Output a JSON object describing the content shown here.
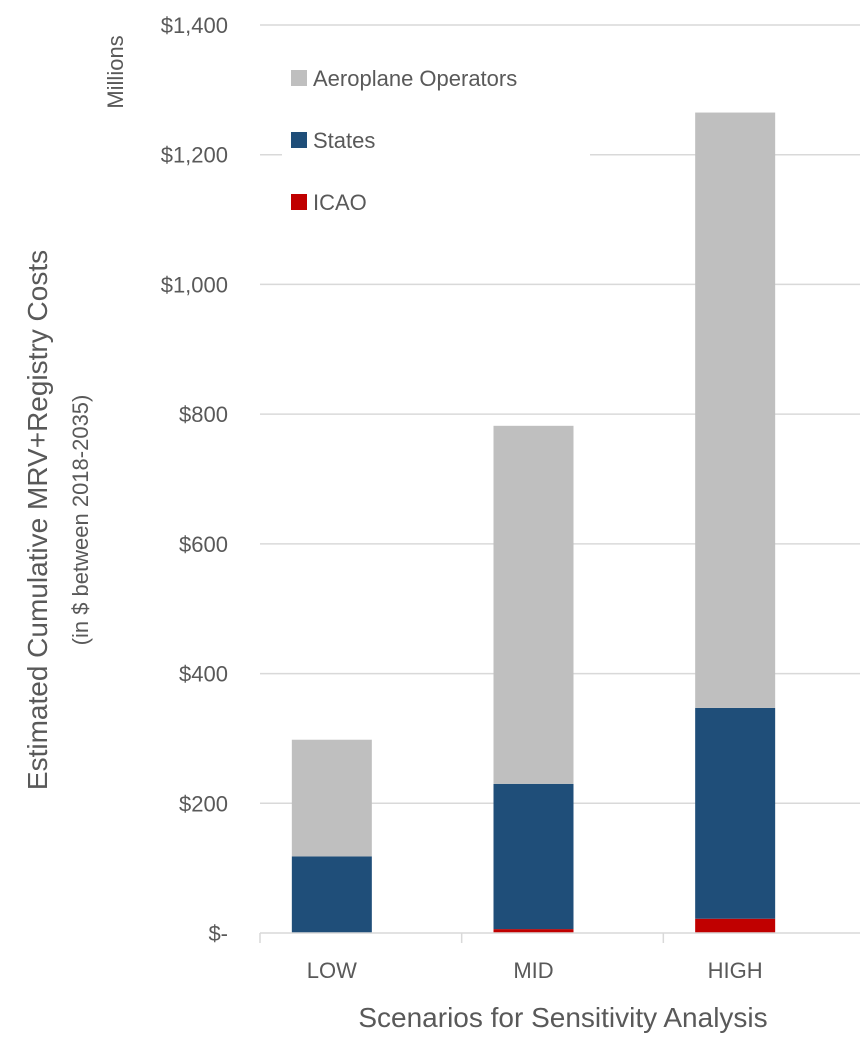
{
  "chart_data": {
    "type": "bar",
    "stacked": true,
    "categories": [
      "LOW",
      "MID",
      "HIGH"
    ],
    "series": [
      {
        "name": "ICAO",
        "color": "#c00000",
        "values": [
          0,
          6,
          22
        ]
      },
      {
        "name": "States",
        "color": "#1f4e79",
        "values": [
          118,
          224,
          325
        ]
      },
      {
        "name": "Aeroplane Operators",
        "color": "#bfbfbf",
        "values": [
          180,
          552,
          918
        ]
      }
    ],
    "legend_order": [
      "Aeroplane Operators",
      "States",
      "ICAO"
    ],
    "legend_position": "top-left",
    "ylim": [
      0,
      1400
    ],
    "ytick_values": [
      0,
      200,
      400,
      600,
      800,
      1000,
      1200,
      1400
    ],
    "ytick_labels": [
      "$-",
      "$200",
      "$400",
      "$600",
      "$800",
      "$1,000",
      "$1,200",
      "$1,400"
    ],
    "y_unit_label": "Millions",
    "ylabel": "Estimated Cumulative MRV+Registry Costs",
    "ylabel_sub": "(in $ between 2018-2035)",
    "xlabel": "Scenarios for Sensitivity Analysis",
    "grid": true,
    "grid_color": "#d9d9d9",
    "text_color": "#595959"
  }
}
